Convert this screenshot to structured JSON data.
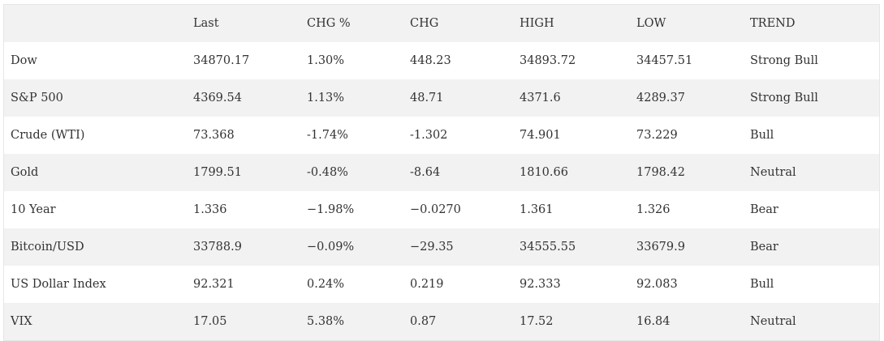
{
  "table": {
    "headers": [
      "",
      "Last",
      "CHG %",
      "CHG",
      "HIGH",
      "LOW",
      "TREND"
    ],
    "rows": [
      [
        "Dow",
        "34870.17",
        "1.30%",
        "448.23",
        "34893.72",
        "34457.51",
        "Strong Bull"
      ],
      [
        "S&P 500",
        "4369.54",
        "1.13%",
        "48.71",
        "4371.6",
        "4289.37",
        "Strong Bull"
      ],
      [
        "Crude (WTI)",
        "73.368",
        "-1.74%",
        "-1.302",
        "74.901",
        "73.229",
        "Bull"
      ],
      [
        "Gold",
        "1799.51",
        "-0.48%",
        "-8.64",
        "1810.66",
        "1798.42",
        "Neutral"
      ],
      [
        "10 Year",
        "1.336",
        "−1.98%",
        "−0.0270",
        "1.361",
        "1.326",
        "Bear"
      ],
      [
        "Bitcoin/USD",
        "33788.9",
        "−0.09%",
        "−29.35",
        "34555.55",
        "33679.9",
        "Bear"
      ],
      [
        "US Dollar Index",
        "92.321",
        "0.24%",
        "0.219",
        "92.333",
        "92.083",
        "Bull"
      ],
      [
        "VIX",
        "17.05",
        "5.38%",
        "0.87",
        "17.52",
        "16.84",
        "Neutral"
      ]
    ]
  }
}
